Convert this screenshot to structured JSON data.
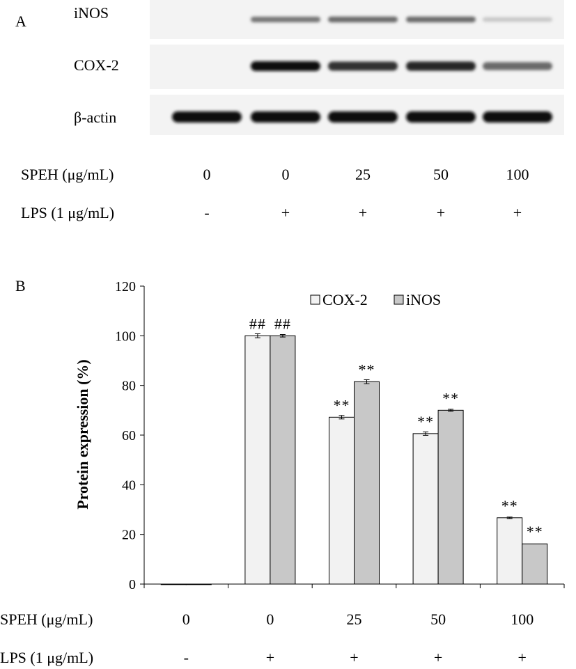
{
  "panel_a": {
    "label": "A",
    "blot_rows": [
      {
        "name": "iNOS",
        "intensity": [
          0,
          0.55,
          0.6,
          0.6,
          0.2
        ]
      },
      {
        "name": "COX-2",
        "intensity": [
          0,
          1.0,
          0.85,
          0.9,
          0.6
        ]
      },
      {
        "name": "β-actin",
        "intensity": [
          1.0,
          1.0,
          1.0,
          1.0,
          1.0
        ]
      }
    ],
    "treatment_rows": [
      {
        "label": "SPEH (μg/mL)",
        "values": [
          "0",
          "0",
          "25",
          "50",
          "100"
        ]
      },
      {
        "label": "LPS (1 μg/mL)",
        "values": [
          "-",
          "+",
          "+",
          "+",
          "+"
        ]
      }
    ]
  },
  "panel_b": {
    "label": "B",
    "treatment_rows": [
      {
        "label": "SPEH (μg/mL)",
        "values": [
          "0",
          "0",
          "25",
          "50",
          "100"
        ]
      },
      {
        "label": "LPS (1 μg/mL)",
        "values": [
          "-",
          "+",
          "+",
          "+",
          "+"
        ]
      }
    ]
  },
  "chart_data": {
    "type": "bar",
    "title": "",
    "xlabel": "",
    "ylabel": "Protein expression (%)",
    "ylim": [
      0,
      120
    ],
    "yticks": [
      0,
      20,
      40,
      60,
      80,
      100,
      120
    ],
    "categories": [
      "1",
      "2",
      "3",
      "4",
      "5"
    ],
    "legend_position": "top-right",
    "series": [
      {
        "name": "COX-2",
        "color": "#f2f2f2",
        "values": [
          0,
          100,
          67.2,
          60.6,
          26.7
        ],
        "errors": [
          0,
          0.8,
          0.7,
          0.7,
          0.3
        ],
        "annotations": [
          "",
          "##",
          "**",
          "**",
          "**"
        ]
      },
      {
        "name": "iNOS",
        "color": "#c8c8c8",
        "values": [
          0,
          100,
          81.5,
          70,
          16.2
        ],
        "errors": [
          0,
          0.5,
          0.8,
          0.4,
          0
        ],
        "annotations": [
          "",
          "##",
          "**",
          "**",
          "**"
        ]
      }
    ]
  }
}
